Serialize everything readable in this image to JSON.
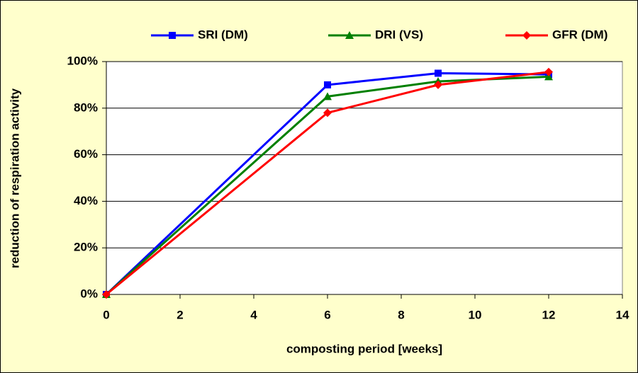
{
  "chart_data": {
    "type": "line",
    "x_label": "composting period [weeks]",
    "y_label": "reduction of respiration activity",
    "xlim": [
      0,
      14
    ],
    "xticks": [
      0,
      2,
      4,
      6,
      8,
      10,
      12,
      14
    ],
    "ylim": [
      0,
      100
    ],
    "yticks": [
      {
        "value": 0,
        "label": "0%"
      },
      {
        "value": 20,
        "label": "20%"
      },
      {
        "value": 40,
        "label": "40%"
      },
      {
        "value": 60,
        "label": "60%"
      },
      {
        "value": 80,
        "label": "80%"
      },
      {
        "value": 100,
        "label": "100%"
      }
    ],
    "grid": true,
    "legend": "top",
    "series": [
      {
        "name": "SRI (DM)",
        "color": "#0000ff",
        "marker": "square",
        "x": [
          0,
          6,
          9,
          12
        ],
        "values": [
          0,
          90,
          95,
          94.5
        ]
      },
      {
        "name": "DRI (VS)",
        "color": "#008000",
        "marker": "triangle",
        "x": [
          0,
          6,
          9,
          12
        ],
        "values": [
          0,
          85,
          91.5,
          93.5
        ]
      },
      {
        "name": "GFR (DM)",
        "color": "#ff0000",
        "marker": "diamond",
        "x": [
          0,
          6,
          9,
          12
        ],
        "values": [
          0,
          78,
          90,
          95.5
        ]
      }
    ]
  }
}
